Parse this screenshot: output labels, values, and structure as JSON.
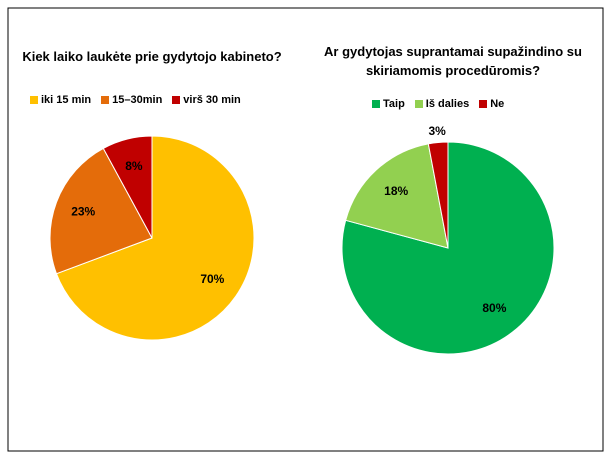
{
  "chart_data": [
    {
      "type": "pie",
      "title": "Kiek laiko laukėte prie gydytojo kabineto?",
      "categories": [
        "iki 15 min",
        "15–30min",
        "virš 30 min"
      ],
      "values": [
        70,
        23,
        8
      ],
      "value_labels": [
        "70%",
        "23%",
        "8%"
      ],
      "colors": [
        "#ffc000",
        "#e46c0a",
        "#c00000"
      ],
      "legend": "top"
    },
    {
      "type": "pie",
      "title": "Ar gydytojas suprantamai supažindino su skiriamomis procedūromis?",
      "categories": [
        "Taip",
        "Iš dalies",
        "Ne"
      ],
      "values": [
        80,
        18,
        3
      ],
      "value_labels": [
        "80%",
        "18%",
        "3%"
      ],
      "colors": [
        "#00b050",
        "#92d050",
        "#c00000"
      ],
      "legend": "top"
    }
  ]
}
